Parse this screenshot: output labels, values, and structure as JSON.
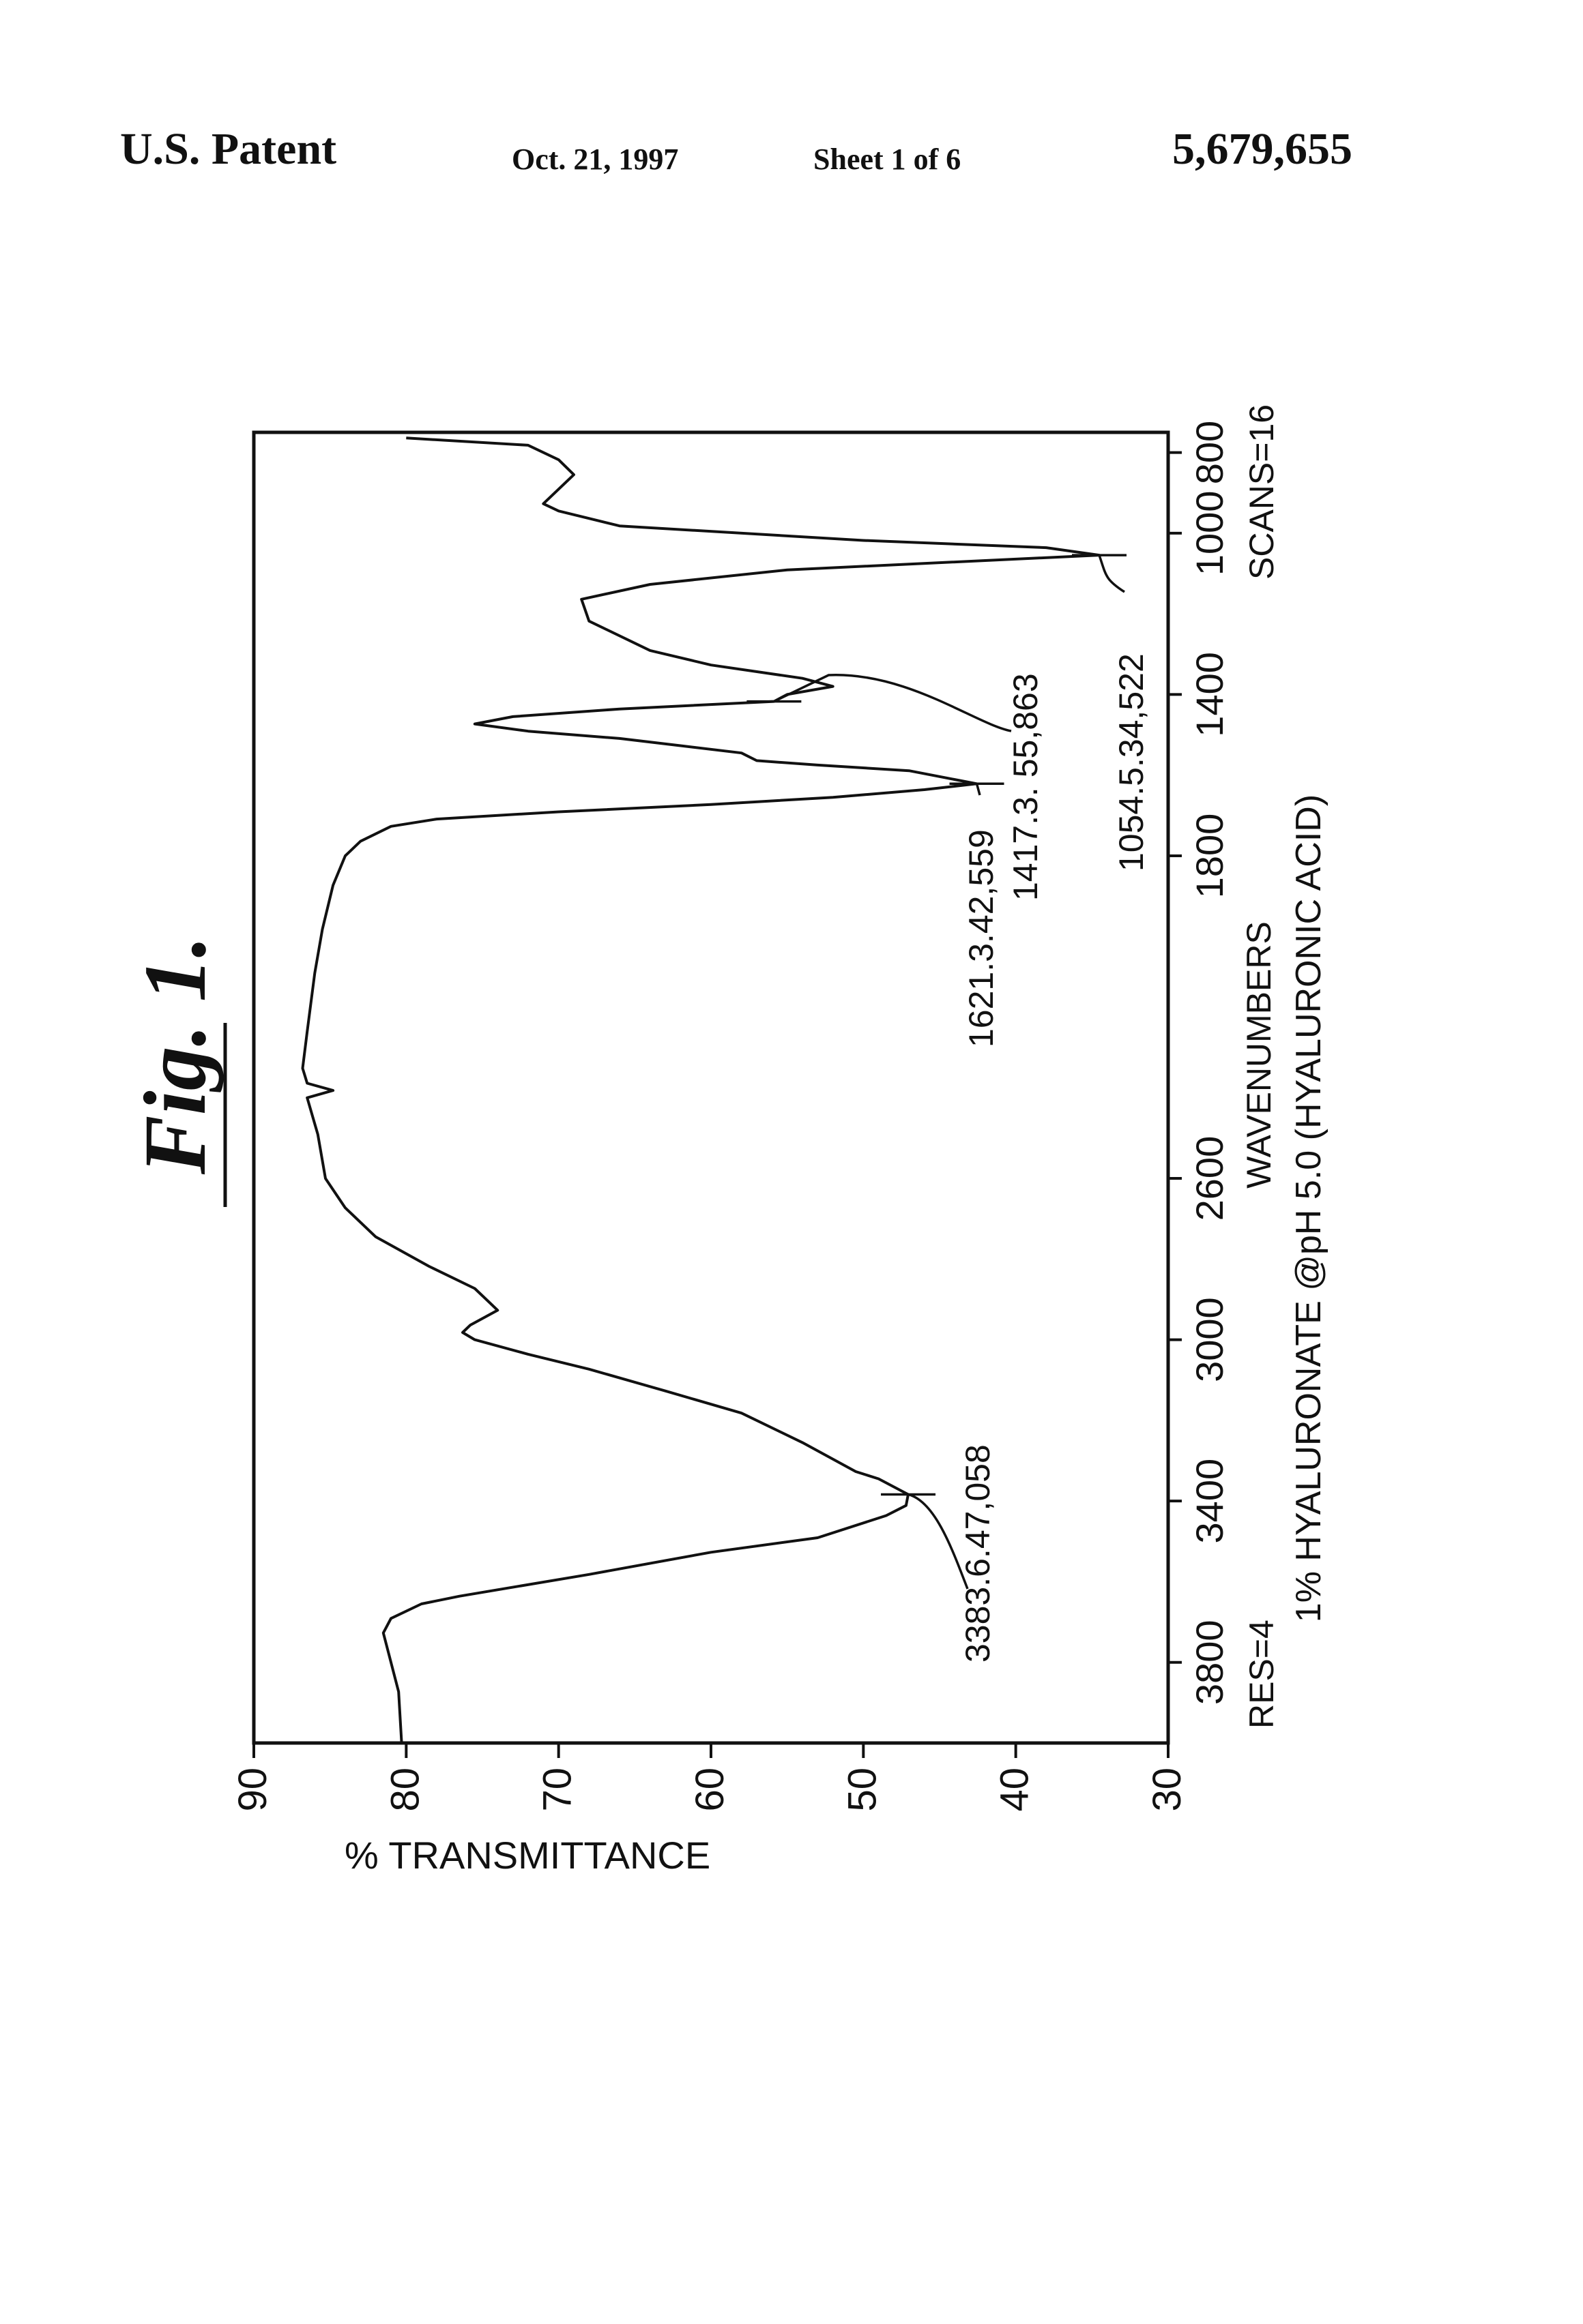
{
  "header": {
    "left": "U.S. Patent",
    "date": "Oct. 21, 1997",
    "sheet": "Sheet 1 of 6",
    "number": "5,679,655"
  },
  "chart_data": {
    "type": "line",
    "title": "Fig. 1.",
    "xlabel": "WAVENUMBERS",
    "ylabel": "% TRANSMITTANCE",
    "caption": "1% HYALURONATE @pH 5.0 (HYALURONIC ACID)",
    "resolution_label": "RES=4",
    "scans_label": "SCANS=16",
    "xlim": [
      4000,
      750
    ],
    "xticks": [
      3800,
      3400,
      3000,
      2600,
      1800,
      1400,
      1000,
      800
    ],
    "ylim": [
      30,
      90
    ],
    "yticks": [
      90,
      80,
      70,
      60,
      50,
      40,
      30
    ],
    "color": "#111111",
    "x": [
      4000,
      3873,
      3727,
      3691,
      3655,
      3636,
      3582,
      3527,
      3491,
      3436,
      3411,
      3383.6,
      3345,
      3327,
      3255,
      3182,
      3127,
      3073,
      3036,
      3000,
      2982,
      2964,
      2927,
      2909,
      2873,
      2818,
      2745,
      2673,
      2600,
      2491,
      2400,
      2382,
      2364,
      2327,
      2236,
      2091,
      1982,
      1873,
      1800,
      1764,
      1727,
      1709,
      1691,
      1673,
      1655,
      1636,
      1621.3,
      1589,
      1575,
      1564,
      1545,
      1527,
      1509,
      1491,
      1473,
      1455,
      1436,
      1417.3,
      1400,
      1380,
      1360,
      1327,
      1291,
      1218,
      1164,
      1127,
      1091,
      1054.5,
      1036,
      1018,
      982,
      945,
      927,
      855,
      818,
      782,
      764
    ],
    "values": [
      80.3,
      80.5,
      81.5,
      81,
      79,
      76.5,
      68,
      60,
      53,
      48.5,
      47.2,
      47.058,
      49,
      50.5,
      54,
      58,
      63,
      68,
      72,
      75.5,
      76.3,
      75.8,
      74,
      74.5,
      75.5,
      78.5,
      82,
      84,
      85.3,
      85.8,
      86.5,
      84.8,
      86.5,
      86.8,
      86.5,
      86,
      85.5,
      84.8,
      84,
      83,
      81,
      78,
      70,
      60,
      52,
      46,
      42.559,
      47,
      53,
      57,
      58,
      62,
      66,
      72,
      75.5,
      73,
      66,
      55.863,
      55,
      52,
      54,
      60,
      64,
      68,
      68.5,
      64,
      55,
      34.522,
      38,
      50,
      66,
      70,
      71,
      69,
      70,
      72,
      80
    ],
    "annotations": [
      {
        "text": "3383.6.47,058",
        "x": 3383.6,
        "y": 47.058
      },
      {
        "text": "1621.3.42,559",
        "x": 1621.3,
        "y": 42.559
      },
      {
        "text": "1417.3. 55,863",
        "x": 1417.3,
        "y": 55.863
      },
      {
        "text": "1054.5.34,522",
        "x": 1054.5,
        "y": 34.522
      }
    ]
  }
}
